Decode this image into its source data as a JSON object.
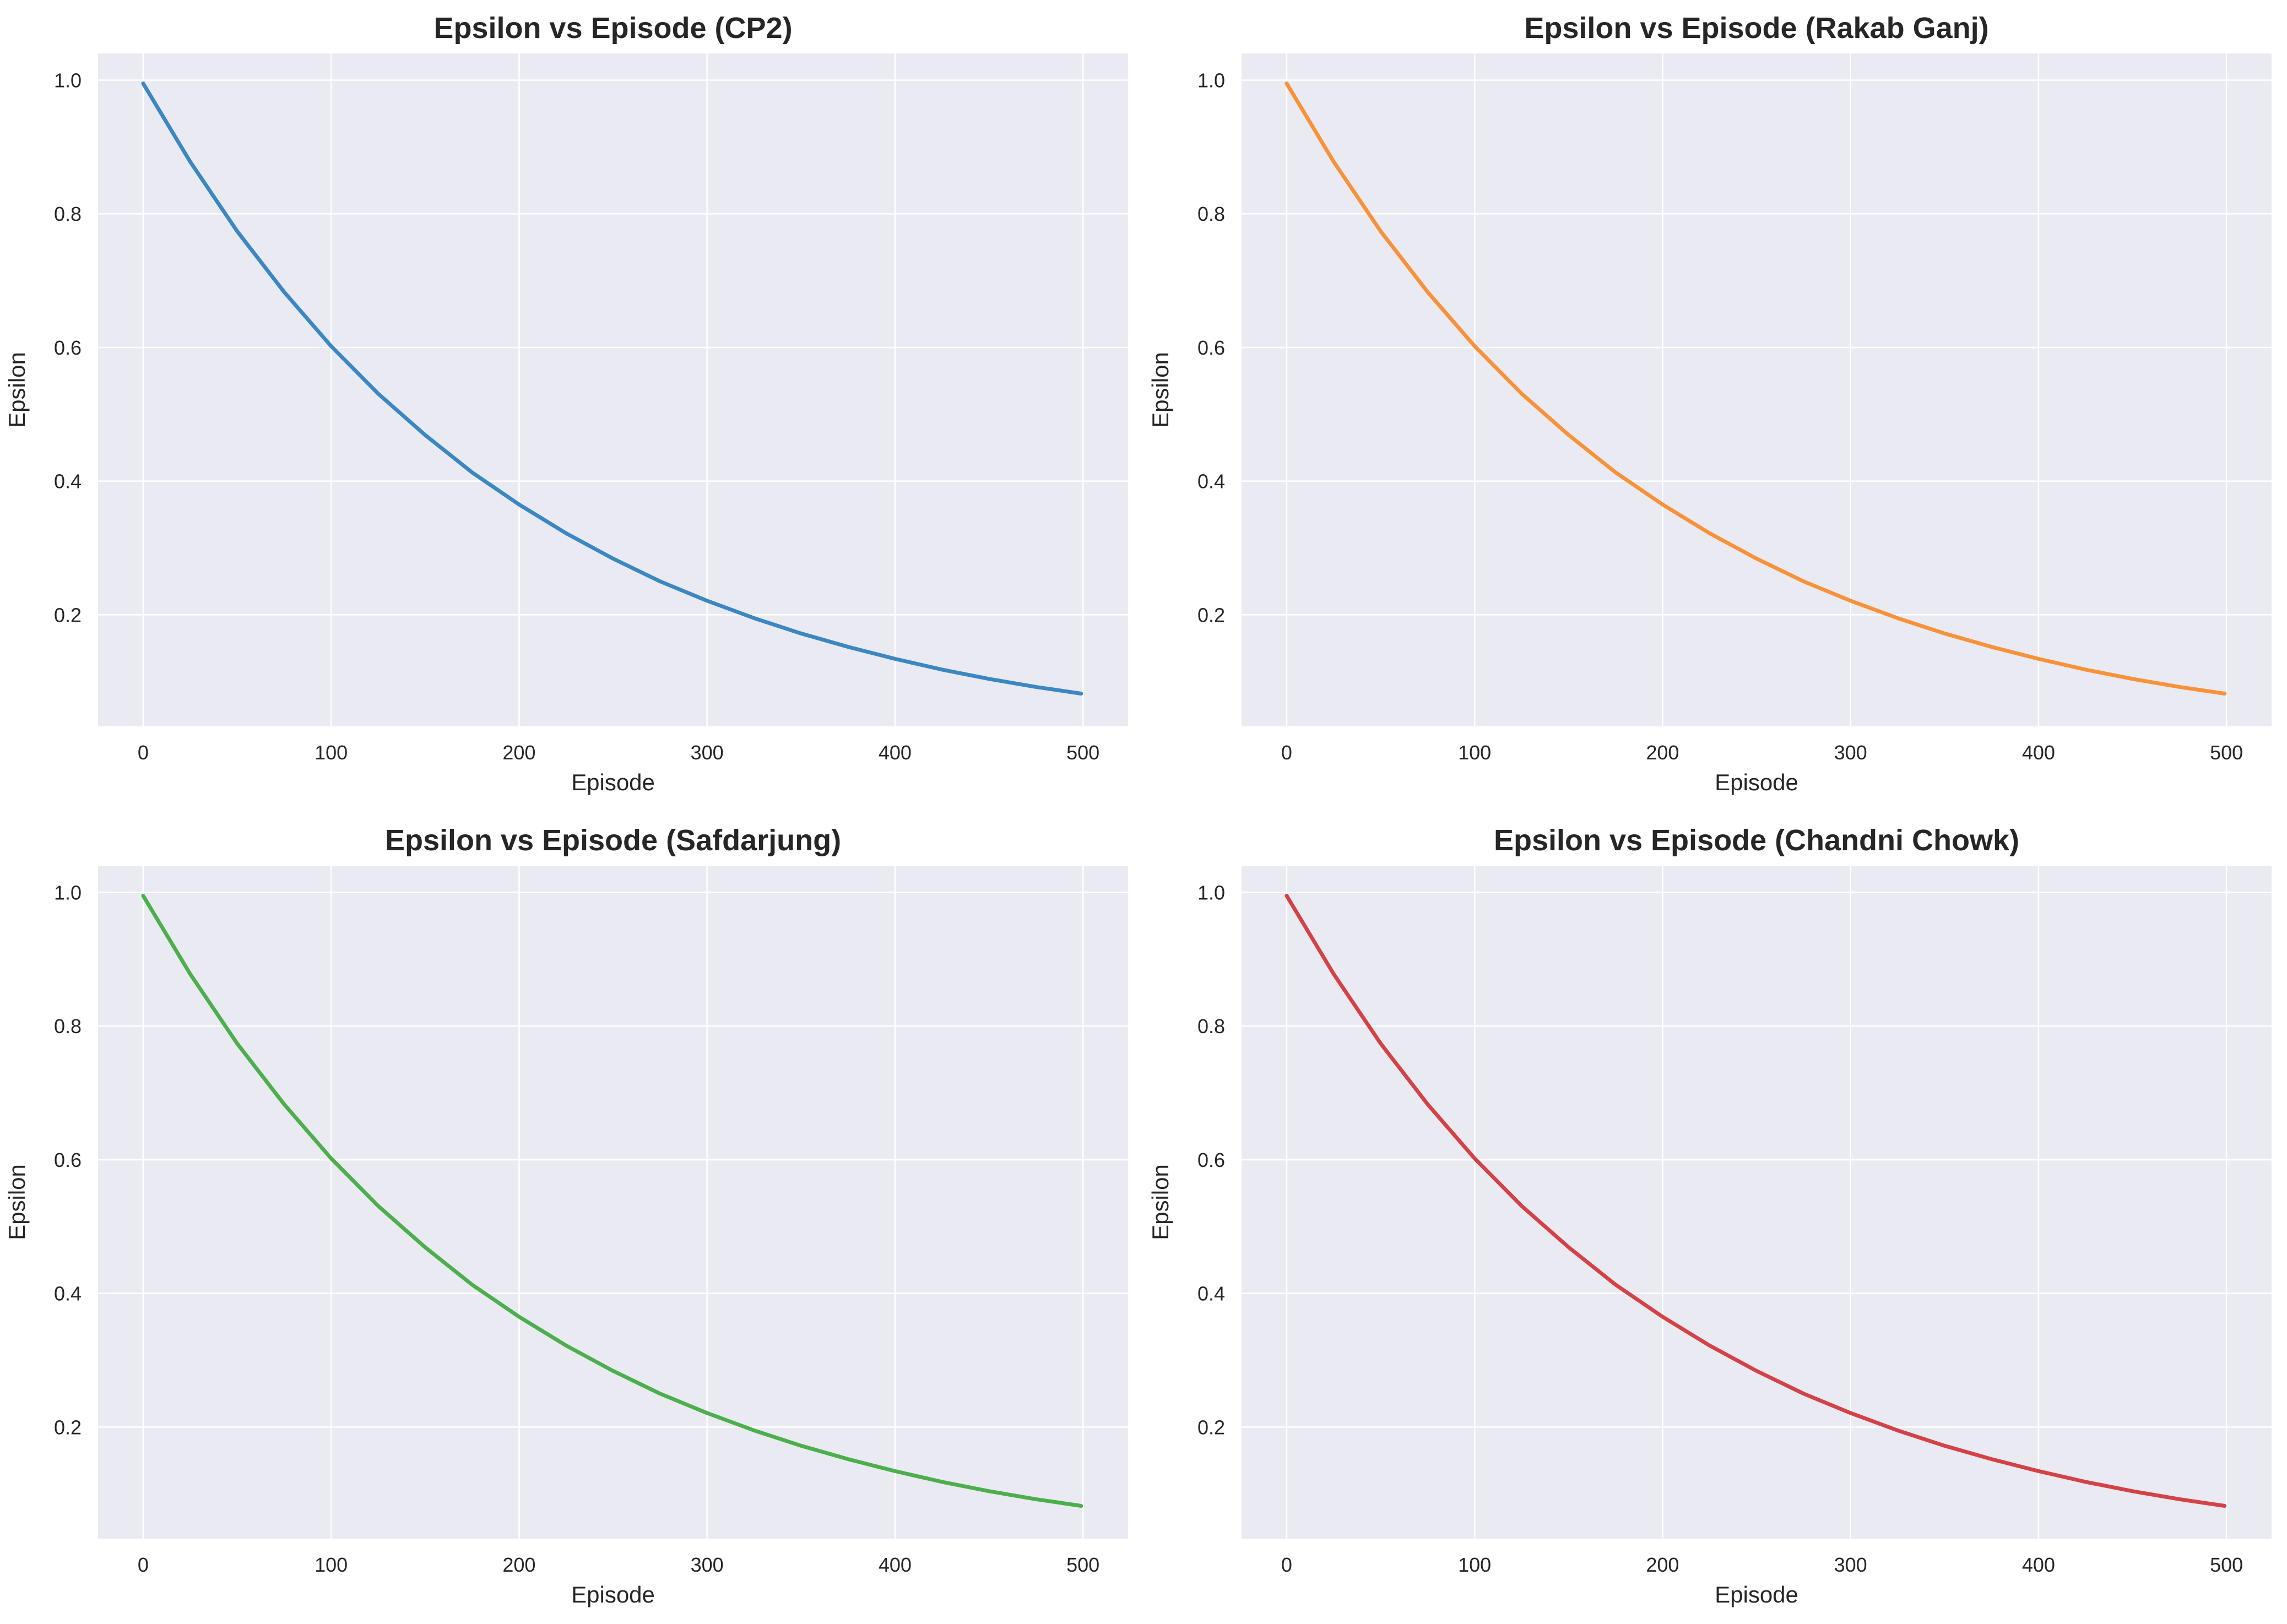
{
  "chart_data": [
    {
      "type": "line",
      "title": "Epsilon vs Episode (CP2)",
      "xlabel": "Episode",
      "ylabel": "Epsilon",
      "xlim": [
        -24,
        524
      ],
      "ylim": [
        0.033,
        1.04
      ],
      "xticks": [
        0,
        100,
        200,
        300,
        400,
        500
      ],
      "yticks": [
        0.2,
        0.4,
        0.6,
        0.8,
        1.0
      ],
      "grid": true,
      "color": "#3b87c2",
      "x": [
        0,
        25,
        50,
        75,
        100,
        125,
        150,
        175,
        200,
        225,
        250,
        275,
        300,
        325,
        350,
        375,
        400,
        425,
        450,
        475,
        499
      ],
      "values": [
        0.995,
        0.878,
        0.774,
        0.683,
        0.602,
        0.531,
        0.469,
        0.413,
        0.365,
        0.322,
        0.284,
        0.25,
        0.221,
        0.195,
        0.172,
        0.152,
        0.134,
        0.118,
        0.104,
        0.092,
        0.082
      ]
    },
    {
      "type": "line",
      "title": "Epsilon vs Episode (Rakab Ganj)",
      "xlabel": "Episode",
      "ylabel": "Epsilon",
      "xlim": [
        -24,
        524
      ],
      "ylim": [
        0.033,
        1.04
      ],
      "xticks": [
        0,
        100,
        200,
        300,
        400,
        500
      ],
      "yticks": [
        0.2,
        0.4,
        0.6,
        0.8,
        1.0
      ],
      "grid": true,
      "color": "#f7923a",
      "x": [
        0,
        25,
        50,
        75,
        100,
        125,
        150,
        175,
        200,
        225,
        250,
        275,
        300,
        325,
        350,
        375,
        400,
        425,
        450,
        475,
        499
      ],
      "values": [
        0.995,
        0.878,
        0.774,
        0.683,
        0.602,
        0.531,
        0.469,
        0.413,
        0.365,
        0.322,
        0.284,
        0.25,
        0.221,
        0.195,
        0.172,
        0.152,
        0.134,
        0.118,
        0.104,
        0.092,
        0.082
      ]
    },
    {
      "type": "line",
      "title": "Epsilon vs Episode (Safdarjung)",
      "xlabel": "Episode",
      "ylabel": "Epsilon",
      "xlim": [
        -24,
        524
      ],
      "ylim": [
        0.033,
        1.04
      ],
      "xticks": [
        0,
        100,
        200,
        300,
        400,
        500
      ],
      "yticks": [
        0.2,
        0.4,
        0.6,
        0.8,
        1.0
      ],
      "grid": true,
      "color": "#4caf4c",
      "x": [
        0,
        25,
        50,
        75,
        100,
        125,
        150,
        175,
        200,
        225,
        250,
        275,
        300,
        325,
        350,
        375,
        400,
        425,
        450,
        475,
        499
      ],
      "values": [
        0.995,
        0.878,
        0.774,
        0.683,
        0.602,
        0.531,
        0.469,
        0.413,
        0.365,
        0.322,
        0.284,
        0.25,
        0.221,
        0.195,
        0.172,
        0.152,
        0.134,
        0.118,
        0.104,
        0.092,
        0.082
      ]
    },
    {
      "type": "line",
      "title": "Epsilon vs Episode (Chandni Chowk)",
      "xlabel": "Episode",
      "ylabel": "Epsilon",
      "xlim": [
        -24,
        524
      ],
      "ylim": [
        0.033,
        1.04
      ],
      "xticks": [
        0,
        100,
        200,
        300,
        400,
        500
      ],
      "yticks": [
        0.2,
        0.4,
        0.6,
        0.8,
        1.0
      ],
      "grid": true,
      "color": "#d34246",
      "x": [
        0,
        25,
        50,
        75,
        100,
        125,
        150,
        175,
        200,
        225,
        250,
        275,
        300,
        325,
        350,
        375,
        400,
        425,
        450,
        475,
        499
      ],
      "values": [
        0.995,
        0.878,
        0.774,
        0.683,
        0.602,
        0.531,
        0.469,
        0.413,
        0.365,
        0.322,
        0.284,
        0.25,
        0.221,
        0.195,
        0.172,
        0.152,
        0.134,
        0.118,
        0.104,
        0.092,
        0.082
      ]
    }
  ],
  "style": {
    "plot_background": "#eaeaf2",
    "grid_color": "#ffffff",
    "text_color": "#262626"
  }
}
